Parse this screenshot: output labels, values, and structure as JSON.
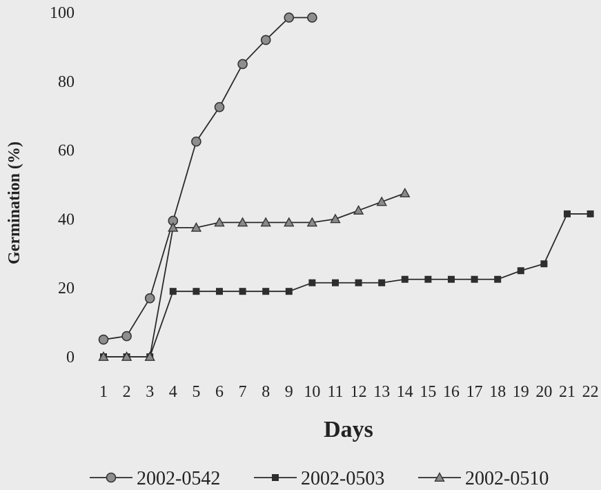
{
  "chart_data": {
    "type": "line",
    "title": "",
    "xlabel": "Days",
    "ylabel": "Germination (%)",
    "x": [
      1,
      2,
      3,
      4,
      5,
      6,
      7,
      8,
      9,
      10,
      11,
      12,
      13,
      14,
      15,
      16,
      17,
      18,
      19,
      20,
      21,
      22
    ],
    "xlim": [
      1,
      22
    ],
    "ylim": [
      0,
      100
    ],
    "yticks": [
      0,
      20,
      40,
      60,
      80,
      100
    ],
    "grid": false,
    "legend_position": "bottom",
    "series": [
      {
        "name": "2002-0542",
        "marker": "circle",
        "color": "#8a8a8a",
        "x": [
          1,
          2,
          3,
          4,
          5,
          6,
          7,
          8,
          9,
          10
        ],
        "values": [
          5,
          6,
          17,
          39.5,
          62.5,
          72.5,
          85,
          92,
          98.5,
          98.5
        ]
      },
      {
        "name": "2002-0503",
        "marker": "square",
        "color": "#3a3a3a",
        "x": [
          1,
          2,
          3,
          4,
          5,
          6,
          7,
          8,
          9,
          10,
          11,
          12,
          13,
          14,
          15,
          16,
          17,
          18,
          19,
          20,
          21,
          22
        ],
        "values": [
          0,
          0,
          0,
          19,
          19,
          19,
          19,
          19,
          19,
          21.5,
          21.5,
          21.5,
          21.5,
          22.5,
          22.5,
          22.5,
          22.5,
          22.5,
          25,
          27,
          41.5,
          41.5
        ]
      },
      {
        "name": "2002-0510",
        "marker": "triangle",
        "color": "#7a7a7a",
        "x": [
          1,
          2,
          3,
          4,
          5,
          6,
          7,
          8,
          9,
          10,
          11,
          12,
          13,
          14
        ],
        "values": [
          0,
          0,
          0,
          37.5,
          37.5,
          39,
          39,
          39,
          39,
          39,
          40,
          42.5,
          45,
          47.5
        ]
      }
    ]
  }
}
